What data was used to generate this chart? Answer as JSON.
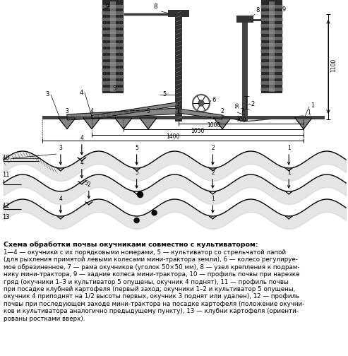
{
  "caption_bold": "Схема обработки почвы окучниками совместно с культиватором:",
  "caption_body": "1—4 — окучники с их порядковыми номерами, 5 — культиватор со стрельчатой лапой\n(для рыхления примятой левыми колесами мини-трактора земли), 6 — колесо регулируе-\nмое обрезиненное, 7 — рама окучников (уголок 50×50 мм), 8 — узел крепления к подрам-\nнику мини-трактора, 9 — задние колеса мини-трактора, 10 — профиль почвы при нарезке\nгряд (окучники 1–3 и культиватор 5 опущены, окучник 4 поднят), 11 — профиль почвы\nпри посадке клубней картофеля (первый заход; окучники 1–2 и культиватор 5 опущены,\nокучник 4 приподнят на 1/2 высоты первых, окучник 3 поднят или удален), 12 — профиль\nпочвы при последующем заходе мини-трактора на посадке картофеля (положение окучни-\nков и культиватора аналогично предыдущему пункту), 13 — клубни картофеля (ориенти-\nрованы ростками вверх).",
  "bg_color": "#ffffff",
  "fig_width": 4.93,
  "fig_height": 5.04,
  "dpi": 100
}
